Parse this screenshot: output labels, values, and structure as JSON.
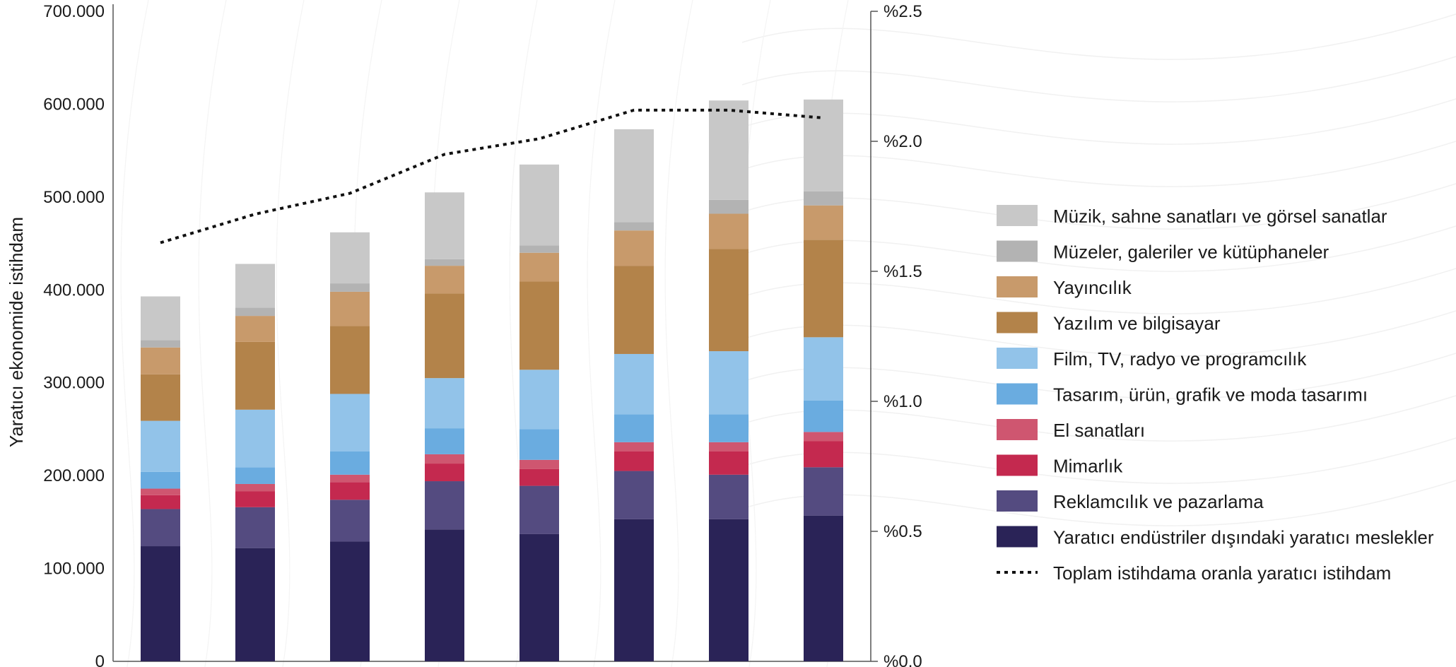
{
  "chart_data": {
    "type": "bar",
    "stacked": true,
    "categories": [
      "",
      "",
      "",
      "",
      "",
      "",
      "",
      ""
    ],
    "ylabel": "Yaratıcı ekonomide istihdam",
    "ylim": [
      0,
      700000
    ],
    "y_ticks": [
      {
        "value": 0,
        "label": "0"
      },
      {
        "value": 100000,
        "label": "100.000"
      },
      {
        "value": 200000,
        "label": "200.000"
      },
      {
        "value": 300000,
        "label": "300.000"
      },
      {
        "value": 400000,
        "label": "400.000"
      },
      {
        "value": 500000,
        "label": "500.000"
      },
      {
        "value": 600000,
        "label": "600.000"
      },
      {
        "value": 700000,
        "label": "700.000"
      }
    ],
    "y2lim": [
      0,
      2.5
    ],
    "y2_ticks": [
      {
        "value": 0.0,
        "label": "%0.0"
      },
      {
        "value": 0.5,
        "label": "%0.5"
      },
      {
        "value": 1.0,
        "label": "%1.0"
      },
      {
        "value": 1.5,
        "label": "%1.5"
      },
      {
        "value": 2.0,
        "label": "%2.0"
      },
      {
        "value": 2.5,
        "label": "%2.5"
      }
    ],
    "legend_position": "right",
    "series": [
      {
        "name": "Yaratıcı endüstriler dışındaki yaratıcı meslekler",
        "color": "#2a2357",
        "values": [
          124000,
          122000,
          129000,
          142000,
          137000,
          153000,
          153000,
          157000
        ]
      },
      {
        "name": "Reklamcılık ve pazarlama",
        "color": "#544b80",
        "values": [
          40000,
          44000,
          45000,
          52000,
          52000,
          52000,
          48000,
          52000
        ]
      },
      {
        "name": "Mimarlık",
        "color": "#c4294f",
        "values": [
          15000,
          17000,
          19000,
          19000,
          18000,
          21000,
          25000,
          28000
        ]
      },
      {
        "name": "El sanatları",
        "color": "#cf5670",
        "values": [
          7000,
          8000,
          8000,
          10000,
          10000,
          10000,
          10000,
          10000
        ]
      },
      {
        "name": "Tasarım, ürün, grafik ve moda tasarımı",
        "color": "#6aace0",
        "values": [
          18000,
          18000,
          25000,
          28000,
          33000,
          30000,
          30000,
          34000
        ]
      },
      {
        "name": "Film, TV, radyo ve programcılık",
        "color": "#92c3e9",
        "values": [
          55000,
          62000,
          62000,
          54000,
          64000,
          65000,
          68000,
          68000
        ]
      },
      {
        "name": "Yazılım ve bilgisayar",
        "color": "#b3834a",
        "values": [
          50000,
          73000,
          73000,
          91000,
          95000,
          95000,
          110000,
          105000
        ]
      },
      {
        "name": "Yayıncılık",
        "color": "#c89a6b",
        "values": [
          29000,
          28000,
          37000,
          30000,
          31000,
          38000,
          38000,
          37000
        ]
      },
      {
        "name": "Müzeler, galeriler ve kütüphaneler",
        "color": "#b3b3b3",
        "values": [
          8000,
          9000,
          9000,
          7000,
          8000,
          9000,
          15000,
          15000
        ]
      },
      {
        "name": "Müzik, sahne sanatları ve görsel sanatlar",
        "color": "#c8c8c8",
        "values": [
          47000,
          47000,
          55000,
          72000,
          87000,
          100000,
          107000,
          99000
        ]
      }
    ],
    "line_series": {
      "name": "Toplam istihdama oranla yaratıcı istihdam",
      "axis": "right",
      "color": "#111111",
      "values": [
        1.61,
        1.72,
        1.8,
        1.95,
        2.01,
        2.12,
        2.12,
        2.09
      ]
    }
  }
}
